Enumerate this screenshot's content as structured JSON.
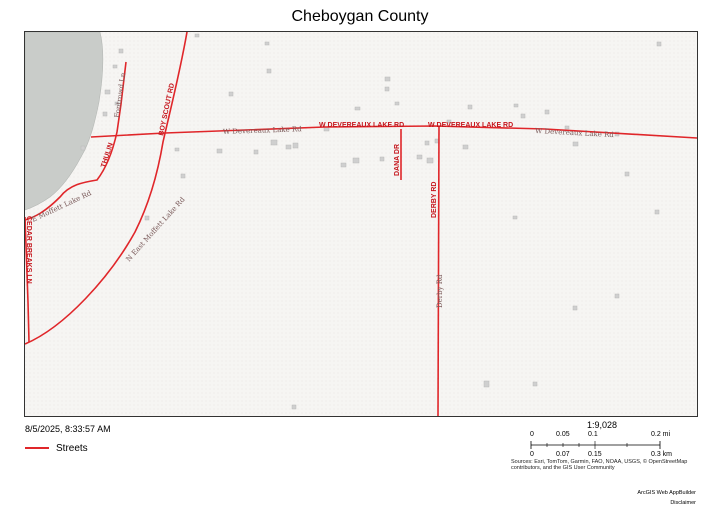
{
  "map": {
    "title": "Cheboygan County",
    "timestamp": "8/5/2025, 8:33:57 AM",
    "legend": {
      "label": "Streets",
      "color": "#e0262a"
    },
    "scale": {
      "ratio": "1:9,028",
      "miles_labels": [
        "0",
        "0.05",
        "0.1",
        "0.2 mi"
      ],
      "km_labels": [
        "0",
        "0.07",
        "0.15",
        "0.3 km"
      ]
    },
    "sources": "Sources: Esri, TomTom, Garmin, FAO, NOAA, USGS, © OpenStreetMap contributors, and the GIS User Community",
    "credit": "ArcGIS Web AppBuilder",
    "disclaimer": "Disclaimer",
    "colors": {
      "road": "#e0262a",
      "water": "#c9ccc9",
      "background": "#f6f5f3",
      "building": "#cfcfcf"
    },
    "road_labels": {
      "w_devereaux_1": "W DEVEREAUX LAKE RD",
      "w_devereaux_2": "W DEVEREAUX LAKE RD",
      "w_devereaux_lower_1": "W Devereaux Lake Rd",
      "w_devereaux_lower_2": "W Devereaux Lake Rd",
      "boy_scout": "BOY SCOUT RD",
      "dana": "DANA DR",
      "derby": "DERBY RD",
      "derby_lower": "Derby Rd",
      "thulin": "THULIN",
      "cedar_breaks": "CEDAR BREAKS LN",
      "moffett_1": "E Moffett Lake Rd",
      "moffett_2": "N East Moffett Lake Rd",
      "fontrowd": "Fontrowd Ln"
    }
  }
}
